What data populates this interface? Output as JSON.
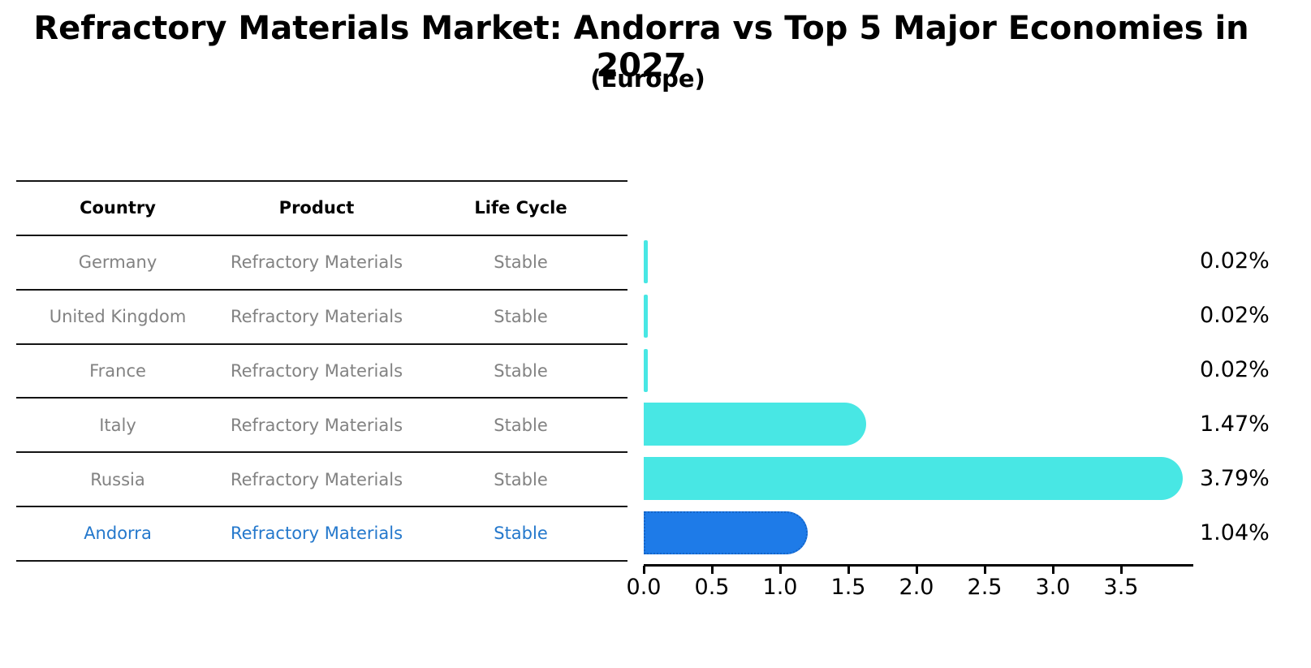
{
  "chart_data": {
    "type": "bar",
    "orientation": "horizontal",
    "title": "Refractory Materials Market: Andorra vs Top 5 Major Economies in 2027",
    "subtitle": "(Europe)",
    "categories": [
      "Germany",
      "United Kingdom",
      "France",
      "Italy",
      "Russia",
      "Andorra"
    ],
    "values": [
      0.02,
      0.02,
      0.02,
      1.47,
      3.79,
      1.04
    ],
    "value_labels": [
      "0.02%",
      "0.02%",
      "0.02%",
      "1.47%",
      "3.79%",
      "1.04%"
    ],
    "x_ticks": [
      0.0,
      0.5,
      1.0,
      1.5,
      2.0,
      2.5,
      3.0,
      3.5
    ],
    "x_tick_labels": [
      "0.0",
      "0.5",
      "1.0",
      "1.5",
      "2.0",
      "2.5",
      "3.0",
      "3.5"
    ],
    "xlim": [
      0,
      4.0
    ],
    "xlabel": "",
    "ylabel": "",
    "grid": false,
    "legend": false,
    "bar_color": "#48E7E4",
    "highlight_color": "#1E7BE8",
    "highlight_border_color": "#1565c8",
    "highlight_index": 5
  },
  "table": {
    "headers": [
      "Country",
      "Product",
      "Life Cycle"
    ],
    "rows": [
      {
        "country": "Germany",
        "product": "Refractory Materials",
        "life_cycle": "Stable",
        "highlight": false
      },
      {
        "country": "United Kingdom",
        "product": "Refractory Materials",
        "life_cycle": "Stable",
        "highlight": false
      },
      {
        "country": "France",
        "product": "Refractory Materials",
        "life_cycle": "Stable",
        "highlight": false
      },
      {
        "country": "Italy",
        "product": "Refractory Materials",
        "life_cycle": "Stable",
        "highlight": false
      },
      {
        "country": "Russia",
        "product": "Refractory Materials",
        "life_cycle": "Stable",
        "highlight": false
      },
      {
        "country": "Andorra",
        "product": "Refractory Materials",
        "life_cycle": "Stable",
        "highlight": true
      }
    ]
  },
  "colors": {
    "row_text": "#828282",
    "highlight_text": "#2478cc",
    "line": "#141414"
  }
}
